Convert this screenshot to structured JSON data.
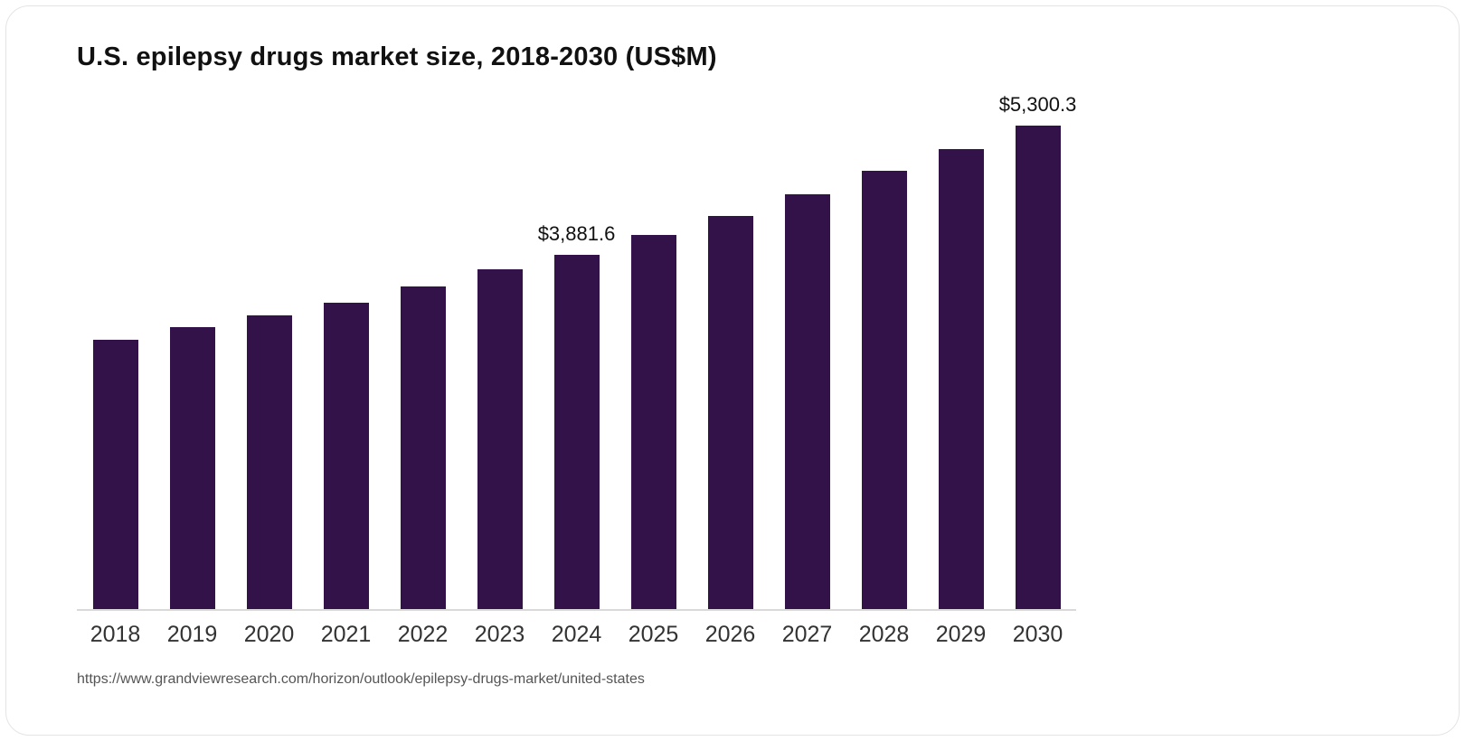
{
  "chart_data": {
    "type": "bar",
    "title": "U.S. epilepsy drugs market size, 2018-2030 (US$M)",
    "categories": [
      "2018",
      "2019",
      "2020",
      "2021",
      "2022",
      "2023",
      "2024",
      "2025",
      "2026",
      "2027",
      "2028",
      "2029",
      "2030"
    ],
    "values": [
      2950,
      3090,
      3220,
      3360,
      3540,
      3730,
      3881.6,
      4100,
      4310,
      4550,
      4800,
      5045,
      5300.3
    ],
    "data_labels": [
      null,
      null,
      null,
      null,
      null,
      null,
      "$3,881.6",
      null,
      null,
      null,
      null,
      null,
      "$5,300.3"
    ],
    "xlabel": "",
    "ylabel": "",
    "ylim": [
      0,
      5600
    ],
    "bar_color": "#33124a",
    "axis_line_color": "#d9d9d9",
    "grid": false,
    "legend": "none"
  },
  "source": "https://www.grandviewresearch.com/horizon/outlook/epilepsy-drugs-market/united-states"
}
